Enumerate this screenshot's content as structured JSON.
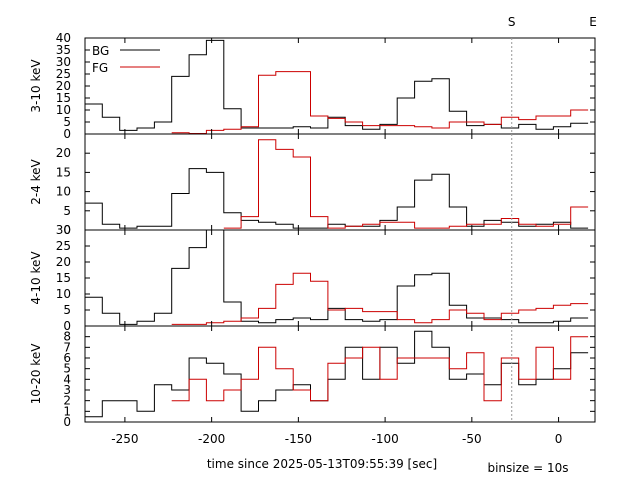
{
  "chart_data": {
    "type": "line",
    "xlabel": "time since 2025-05-13T09:55:39 [sec]",
    "binsize_label": "binsize = 10s",
    "xlim": [
      -273,
      21
    ],
    "x_ticks": [
      -250,
      -200,
      -150,
      -100,
      -50,
      0
    ],
    "marker": {
      "x": -27,
      "label": "S"
    },
    "end_label": "E",
    "legend": {
      "placement": "top-left",
      "entries": [
        "BG",
        "FG"
      ]
    },
    "colors": {
      "BG": "#000000",
      "FG": "#cc0000",
      "marker": "#999999"
    },
    "bin_edges": [
      -273,
      -263,
      -253,
      -243,
      -233,
      -223,
      -213,
      -203,
      -193,
      -183,
      -173,
      -163,
      -153,
      -143,
      -133,
      -123,
      -113,
      -103,
      -93,
      -83,
      -73,
      -63,
      -53,
      -43,
      -33,
      -23,
      -13,
      -3,
      7,
      17
    ],
    "panels": [
      {
        "ylabel": "3-10 keV",
        "ylim": [
          0,
          40
        ],
        "yticks": [
          0,
          5,
          10,
          15,
          20,
          25,
          30,
          35,
          40
        ],
        "series": [
          {
            "name": "BG",
            "values": [
              12.5,
              7,
              1.5,
              2.5,
              5,
              24,
              33,
              39,
              10.5,
              2.5,
              2.5,
              2.5,
              3,
              2.5,
              7,
              3.5,
              2,
              4,
              15,
              22,
              23,
              9.5,
              3.5,
              4,
              2.5,
              4,
              2,
              3,
              4.5
            ]
          },
          {
            "name": "FG",
            "values": [
              null,
              null,
              null,
              null,
              null,
              0.5,
              0.2,
              1.5,
              2,
              3,
              24.5,
              26,
              26,
              7.5,
              6.5,
              5,
              3.5,
              3.5,
              3.5,
              3,
              2.5,
              5,
              5,
              4,
              7,
              6,
              7.5,
              7.5,
              10
            ]
          }
        ]
      },
      {
        "ylabel": "2-4 keV",
        "ylim": [
          0,
          25
        ],
        "yticks": [
          0,
          5,
          10,
          15,
          20
        ],
        "series": [
          {
            "name": "BG",
            "values": [
              7,
              1.5,
              0.5,
              1,
              1,
              9.5,
              16,
              15,
              4.5,
              2.5,
              2,
              1.5,
              0.5,
              0.5,
              1.5,
              1,
              1,
              2.5,
              6,
              13,
              14.5,
              6,
              1,
              2.5,
              2,
              1,
              1.5,
              2,
              0.5
            ]
          },
          {
            "name": "FG",
            "values": [
              null,
              null,
              null,
              null,
              null,
              null,
              null,
              null,
              0.5,
              3.5,
              23.5,
              21,
              19,
              3.5,
              0.5,
              1,
              1.5,
              2,
              2,
              0.5,
              0.5,
              1,
              1.5,
              1.5,
              3,
              1.5,
              1,
              1.5,
              6
            ]
          }
        ]
      },
      {
        "ylabel": "4-10 keV",
        "ylim": [
          0,
          30
        ],
        "yticks": [
          0,
          5,
          10,
          15,
          20,
          25,
          30
        ],
        "series": [
          {
            "name": "BG",
            "values": [
              9,
              4,
              0.5,
              1.5,
              4,
              18,
              24.5,
              30,
              7.5,
              1.5,
              1,
              2,
              2.5,
              2,
              5.5,
              2,
              1.5,
              2,
              12.5,
              16,
              16.5,
              6.5,
              2.5,
              2.5,
              2,
              1,
              1,
              1.5,
              2.5
            ]
          },
          {
            "name": "FG",
            "values": [
              null,
              null,
              null,
              null,
              null,
              0.5,
              0.5,
              1,
              1.5,
              2.5,
              5.5,
              13,
              16.5,
              14,
              5,
              5.5,
              4.5,
              4.5,
              2,
              1,
              2,
              5,
              4,
              2,
              4,
              5,
              5.5,
              6.5,
              7
            ]
          }
        ]
      },
      {
        "ylabel": "10-20 keV",
        "ylim": [
          0,
          9
        ],
        "yticks": [
          0,
          1,
          2,
          3,
          4,
          5,
          6,
          7,
          8
        ],
        "series": [
          {
            "name": "BG",
            "values": [
              0.5,
              2,
              2,
              1,
              3.5,
              3,
              6,
              5.5,
              4.5,
              1,
              2,
              3,
              3.5,
              2,
              4,
              7,
              4,
              7,
              5.5,
              8.5,
              7,
              4,
              4.5,
              3.5,
              5.5,
              3.5,
              4,
              5,
              6.5
            ]
          },
          {
            "name": "FG",
            "values": [
              null,
              null,
              null,
              null,
              null,
              2,
              4,
              2,
              3,
              4,
              7,
              5,
              3,
              2,
              5.5,
              6,
              7,
              4,
              6,
              6,
              6,
              5,
              6.5,
              2,
              6,
              4,
              7,
              4,
              8
            ]
          }
        ]
      }
    ]
  }
}
